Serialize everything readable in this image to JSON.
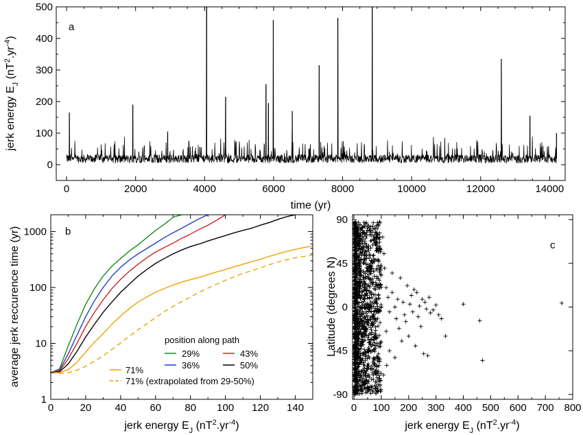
{
  "chart_data": [
    {
      "panel": "a",
      "type": "line",
      "xlabel": "time (yr)",
      "ylabel": "jerk energy E_J (nT^2.yr^-4)",
      "ylabel_parts": {
        "main": "jerk energy E",
        "sub": "J",
        "open": " (nT",
        "sup1": "2",
        "mid": ".yr",
        "sup2": "-4",
        "close": ")"
      },
      "xlim": [
        -300,
        14450
      ],
      "ylim": [
        -50,
        500
      ],
      "xticks": [
        0,
        2000,
        4000,
        6000,
        8000,
        10000,
        12000,
        14000
      ],
      "yticks": [
        0,
        100,
        200,
        300,
        400,
        500
      ],
      "baseline": {
        "x_range": [
          0,
          14200
        ],
        "typical_low": 5,
        "typical_high": 50,
        "typical_max": 75
      },
      "spikes": [
        {
          "x": 80,
          "y": 165
        },
        {
          "x": 1920,
          "y": 190
        },
        {
          "x": 2930,
          "y": 105
        },
        {
          "x": 4060,
          "y": 500
        },
        {
          "x": 4610,
          "y": 215
        },
        {
          "x": 5780,
          "y": 255
        },
        {
          "x": 5850,
          "y": 195
        },
        {
          "x": 5990,
          "y": 458
        },
        {
          "x": 6540,
          "y": 170
        },
        {
          "x": 7320,
          "y": 315
        },
        {
          "x": 7860,
          "y": 465
        },
        {
          "x": 8860,
          "y": 500
        },
        {
          "x": 12600,
          "y": 335
        },
        {
          "x": 13430,
          "y": 155
        },
        {
          "x": 14200,
          "y": 100
        }
      ]
    },
    {
      "panel": "b",
      "type": "line",
      "xlabel": "jerk energy E_J (nT^2.yr^-4)",
      "xlabel_parts": {
        "main": "jerk energy E",
        "sub": "J",
        "open": " (nT",
        "sup1": "2",
        "mid": ".yr",
        "sup2": "-4",
        "close": ")"
      },
      "ylabel": "average jerk reccurence time (yr)",
      "xlim": [
        0,
        150
      ],
      "ylim": [
        1,
        2000
      ],
      "yscale": "log",
      "xticks": [
        0,
        20,
        40,
        60,
        80,
        100,
        120,
        140
      ],
      "yticks": [
        1,
        10,
        100,
        1000
      ],
      "legend_title": "position along path",
      "series": [
        {
          "name": "29%",
          "color": "#1a8a1a",
          "dash": false,
          "points": [
            [
              0,
              3
            ],
            [
              5,
              3.5
            ],
            [
              10,
              9
            ],
            [
              15,
              22
            ],
            [
              20,
              50
            ],
            [
              25,
              95
            ],
            [
              30,
              160
            ],
            [
              35,
              240
            ],
            [
              40,
              330
            ],
            [
              45,
              450
            ],
            [
              50,
              580
            ],
            [
              55,
              780
            ],
            [
              60,
              1050
            ],
            [
              65,
              1350
            ],
            [
              70,
              1800
            ],
            [
              75,
              2000
            ]
          ]
        },
        {
          "name": "36%",
          "color": "#1f3fbf",
          "dash": false,
          "points": [
            [
              0,
              3
            ],
            [
              5,
              3.3
            ],
            [
              10,
              6.5
            ],
            [
              15,
              14
            ],
            [
              20,
              30
            ],
            [
              25,
              58
            ],
            [
              30,
              100
            ],
            [
              35,
              160
            ],
            [
              40,
              230
            ],
            [
              45,
              310
            ],
            [
              50,
              400
            ],
            [
              55,
              500
            ],
            [
              60,
              620
            ],
            [
              65,
              780
            ],
            [
              70,
              950
            ],
            [
              75,
              1150
            ],
            [
              80,
              1400
            ],
            [
              85,
              1700
            ],
            [
              90,
              2000
            ]
          ]
        },
        {
          "name": "43%",
          "color": "#d42020",
          "dash": false,
          "points": [
            [
              0,
              3
            ],
            [
              5,
              3.2
            ],
            [
              10,
              5.3
            ],
            [
              15,
              10
            ],
            [
              20,
              20
            ],
            [
              25,
              36
            ],
            [
              30,
              60
            ],
            [
              35,
              95
            ],
            [
              40,
              140
            ],
            [
              45,
              195
            ],
            [
              50,
              260
            ],
            [
              55,
              340
            ],
            [
              60,
              430
            ],
            [
              65,
              520
            ],
            [
              70,
              620
            ],
            [
              75,
              760
            ],
            [
              80,
              900
            ],
            [
              85,
              1100
            ],
            [
              90,
              1300
            ],
            [
              95,
              1600
            ],
            [
              100,
              2000
            ]
          ]
        },
        {
          "name": "50%",
          "color": "#000000",
          "dash": false,
          "points": [
            [
              0,
              3
            ],
            [
              5,
              3.1
            ],
            [
              10,
              4.3
            ],
            [
              15,
              7.2
            ],
            [
              20,
              13
            ],
            [
              25,
              22
            ],
            [
              30,
              36
            ],
            [
              35,
              55
            ],
            [
              40,
              82
            ],
            [
              45,
              115
            ],
            [
              50,
              160
            ],
            [
              55,
              210
            ],
            [
              60,
              270
            ],
            [
              65,
              330
            ],
            [
              70,
              400
            ],
            [
              75,
              470
            ],
            [
              80,
              540
            ],
            [
              85,
              600
            ],
            [
              90,
              680
            ],
            [
              95,
              760
            ],
            [
              100,
              850
            ],
            [
              105,
              950
            ],
            [
              110,
              1050
            ],
            [
              115,
              1150
            ],
            [
              120,
              1300
            ],
            [
              125,
              1450
            ],
            [
              130,
              1650
            ],
            [
              135,
              1850
            ],
            [
              140,
              2000
            ]
          ]
        },
        {
          "name": "71%",
          "color": "#f0a000",
          "dash": false,
          "points": [
            [
              0,
              3
            ],
            [
              5,
              3
            ],
            [
              10,
              3.4
            ],
            [
              15,
              4.6
            ],
            [
              20,
              7
            ],
            [
              25,
              10.5
            ],
            [
              30,
              15
            ],
            [
              35,
              22
            ],
            [
              40,
              31
            ],
            [
              45,
              42
            ],
            [
              50,
              55
            ],
            [
              55,
              68
            ],
            [
              60,
              82
            ],
            [
              65,
              96
            ],
            [
              70,
              110
            ],
            [
              75,
              125
            ],
            [
              80,
              138
            ],
            [
              85,
              152
            ],
            [
              90,
              170
            ],
            [
              95,
              190
            ],
            [
              100,
              210
            ],
            [
              105,
              235
            ],
            [
              110,
              260
            ],
            [
              115,
              290
            ],
            [
              120,
              320
            ],
            [
              125,
              360
            ],
            [
              130,
              400
            ],
            [
              135,
              440
            ],
            [
              140,
              480
            ],
            [
              145,
              520
            ],
            [
              150,
              550
            ]
          ]
        },
        {
          "name": "71% (extrapolated from 29-50%)",
          "color": "#f0a000",
          "dash": true,
          "points": [
            [
              0,
              3
            ],
            [
              5,
              2.9
            ],
            [
              10,
              3
            ],
            [
              15,
              3.3
            ],
            [
              20,
              3.9
            ],
            [
              25,
              4.8
            ],
            [
              30,
              6
            ],
            [
              35,
              7.8
            ],
            [
              40,
              10.2
            ],
            [
              45,
              13.5
            ],
            [
              50,
              17.5
            ],
            [
              55,
              22.5
            ],
            [
              60,
              29
            ],
            [
              65,
              37
            ],
            [
              70,
              46
            ],
            [
              75,
              56
            ],
            [
              80,
              68
            ],
            [
              85,
              82
            ],
            [
              90,
              98
            ],
            [
              95,
              115
            ],
            [
              100,
              135
            ],
            [
              105,
              155
            ],
            [
              110,
              178
            ],
            [
              115,
              200
            ],
            [
              120,
              225
            ],
            [
              125,
              255
            ],
            [
              130,
              285
            ],
            [
              135,
              315
            ],
            [
              140,
              340
            ],
            [
              145,
              360
            ],
            [
              150,
              380
            ]
          ]
        }
      ]
    },
    {
      "panel": "c",
      "type": "scatter",
      "marker": "+",
      "xlabel": "jerk energy E_J (nT^2.yr^-4)",
      "xlabel_parts": {
        "main": "jerk energy E",
        "sub": "J",
        "open": " (nT",
        "sup1": "2",
        "mid": ".yr",
        "sup2": "-4",
        "close": ")"
      },
      "ylabel": "Latitude (degrees N)",
      "xlim": [
        -5,
        800
      ],
      "ylim": [
        -95,
        95
      ],
      "xticks": [
        0,
        100,
        200,
        300,
        400,
        500,
        600,
        700,
        800
      ],
      "yticks": [
        -90,
        -45,
        0,
        45,
        90
      ],
      "dense_cluster": {
        "x_range": [
          0,
          100
        ],
        "y_range": [
          -90,
          88
        ]
      },
      "outliers": [
        [
          105,
          72
        ],
        [
          110,
          55
        ],
        [
          118,
          20
        ],
        [
          125,
          10
        ],
        [
          130,
          -5
        ],
        [
          140,
          15
        ],
        [
          150,
          0
        ],
        [
          155,
          -12
        ],
        [
          160,
          8
        ],
        [
          165,
          -22
        ],
        [
          170,
          30
        ],
        [
          175,
          -35
        ],
        [
          180,
          5
        ],
        [
          185,
          -8
        ],
        [
          190,
          -15
        ],
        [
          195,
          22
        ],
        [
          200,
          -30
        ],
        [
          205,
          3
        ],
        [
          210,
          12
        ],
        [
          215,
          -5
        ],
        [
          220,
          18
        ],
        [
          225,
          -40
        ],
        [
          230,
          15
        ],
        [
          235,
          -10
        ],
        [
          240,
          1
        ],
        [
          245,
          -20
        ],
        [
          250,
          8
        ],
        [
          255,
          -48
        ],
        [
          260,
          5
        ],
        [
          265,
          -2
        ],
        [
          270,
          -50
        ],
        [
          275,
          10
        ],
        [
          280,
          -6
        ],
        [
          290,
          -3
        ],
        [
          300,
          2
        ],
        [
          310,
          -8
        ],
        [
          320,
          -12
        ],
        [
          335,
          -30
        ],
        [
          400,
          3
        ],
        [
          460,
          -14
        ],
        [
          470,
          -55
        ],
        [
          760,
          4
        ],
        [
          118,
          -25
        ],
        [
          130,
          -45
        ],
        [
          112,
          40
        ],
        [
          120,
          -60
        ],
        [
          108,
          -70
        ],
        [
          140,
          35
        ],
        [
          150,
          -52
        ]
      ]
    }
  ],
  "panels": {
    "a": {
      "letter": "a"
    },
    "b": {
      "letter": "b"
    },
    "c": {
      "letter": "c"
    }
  }
}
